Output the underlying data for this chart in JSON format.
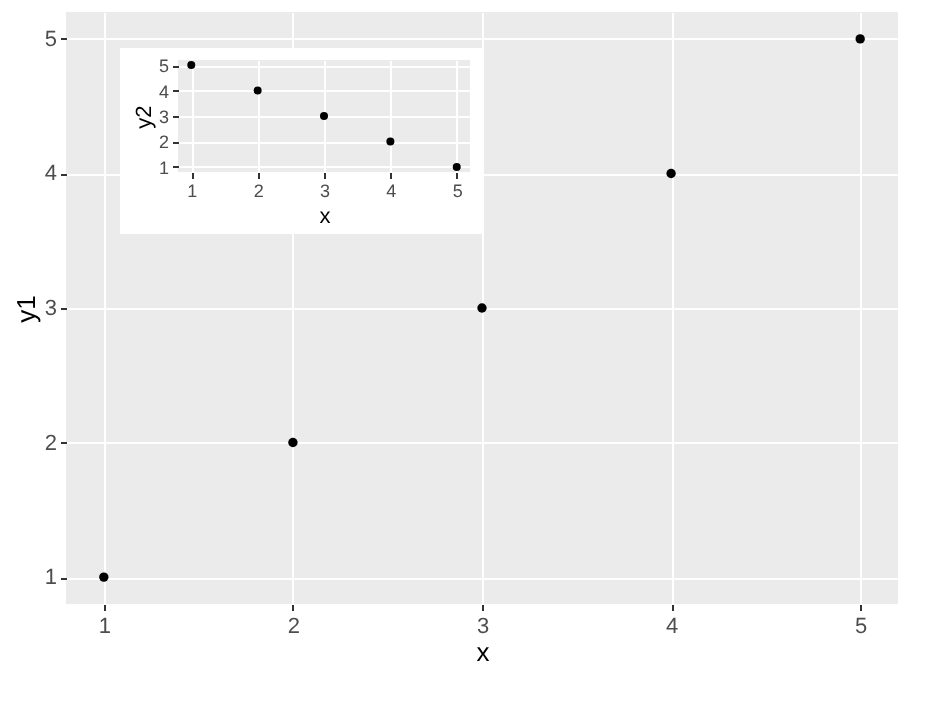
{
  "chart_data": [
    {
      "type": "scatter",
      "x": [
        1,
        2,
        3,
        4,
        5
      ],
      "values": [
        1,
        2,
        3,
        4,
        5
      ],
      "color": "#000000",
      "xlabel": "x",
      "ylabel": "y1",
      "xlim": [
        0.8,
        5.2
      ],
      "ylim": [
        0.8,
        5.2
      ],
      "xticks": [
        1,
        2,
        3,
        4,
        5
      ],
      "yticks": [
        1,
        2,
        3,
        4,
        5
      ],
      "grid": true,
      "marker": "circle"
    },
    {
      "type": "scatter",
      "x": [
        1,
        2,
        3,
        4,
        5
      ],
      "values": [
        5,
        4,
        3,
        2,
        1
      ],
      "color": "#000000",
      "xlabel": "x",
      "ylabel": "y2",
      "xlim": [
        0.8,
        5.2
      ],
      "ylim": [
        0.8,
        5.2
      ],
      "xticks": [
        1,
        2,
        3,
        4,
        5
      ],
      "yticks": [
        1,
        2,
        3,
        4,
        5
      ],
      "grid": true,
      "marker": "circle"
    }
  ]
}
